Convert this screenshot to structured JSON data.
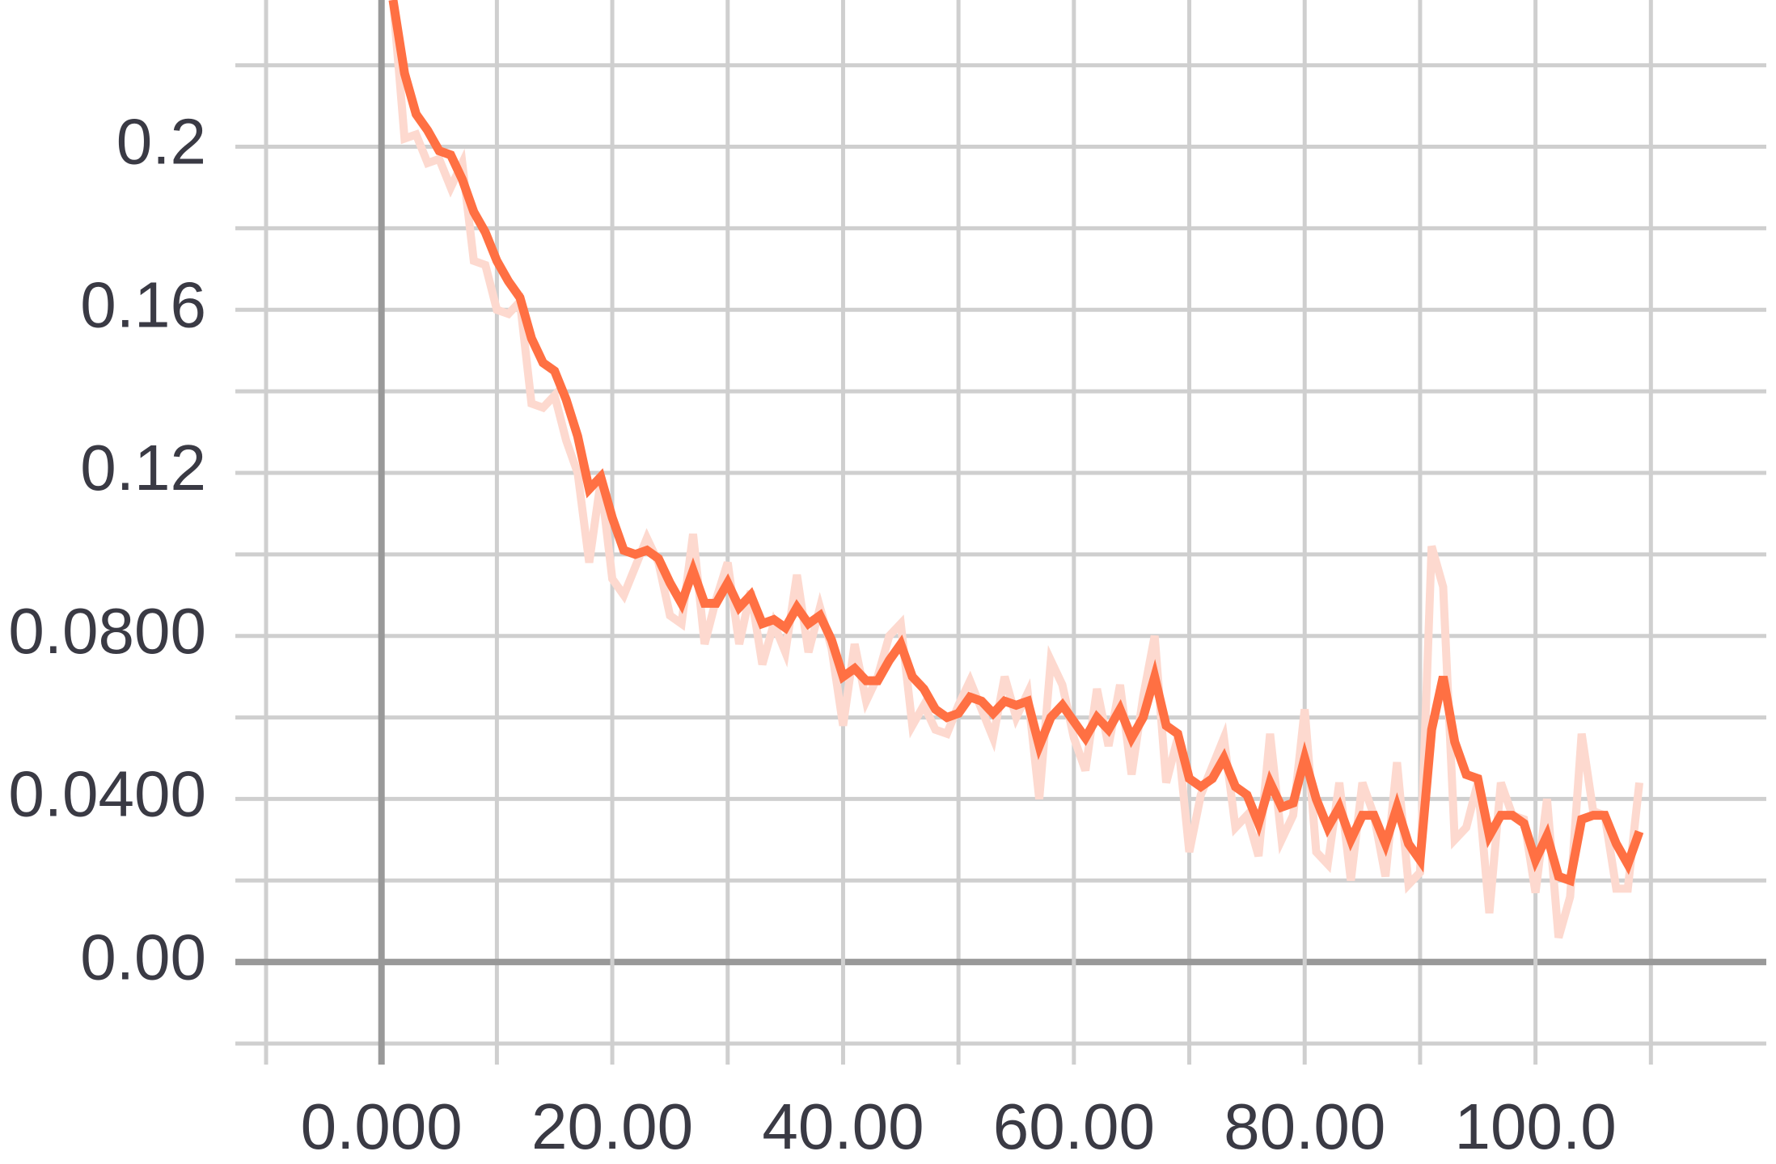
{
  "chart_data": {
    "type": "line",
    "x": [
      1,
      2,
      3,
      4,
      5,
      6,
      7,
      8,
      9,
      10,
      11,
      12,
      13,
      14,
      15,
      16,
      17,
      18,
      19,
      20,
      21,
      22,
      23,
      24,
      25,
      26,
      27,
      28,
      29,
      30,
      31,
      32,
      33,
      34,
      35,
      36,
      37,
      38,
      39,
      40,
      41,
      42,
      43,
      44,
      45,
      46,
      47,
      48,
      49,
      50,
      51,
      52,
      53,
      54,
      55,
      56,
      57,
      58,
      59,
      60,
      61,
      62,
      63,
      64,
      65,
      66,
      67,
      68,
      69,
      70,
      71,
      72,
      73,
      74,
      75,
      76,
      77,
      78,
      79,
      80,
      81,
      82,
      83,
      84,
      85,
      86,
      87,
      88,
      89,
      90,
      91,
      92,
      93,
      94,
      95,
      96,
      97,
      98,
      99,
      100,
      101,
      102,
      103,
      104,
      105,
      106,
      107,
      108,
      109
    ],
    "series": [
      {
        "color": "#fdd9cf",
        "values": [
          0.236,
          0.202,
          0.203,
          0.196,
          0.197,
          0.19,
          0.196,
          0.172,
          0.171,
          0.16,
          0.159,
          0.162,
          0.137,
          0.136,
          0.139,
          0.128,
          0.12,
          0.098,
          0.118,
          0.094,
          0.09,
          0.097,
          0.104,
          0.098,
          0.085,
          0.083,
          0.105,
          0.078,
          0.089,
          0.098,
          0.078,
          0.091,
          0.073,
          0.083,
          0.076,
          0.095,
          0.076,
          0.087,
          0.077,
          0.058,
          0.078,
          0.064,
          0.07,
          0.08,
          0.083,
          0.058,
          0.063,
          0.057,
          0.056,
          0.063,
          0.069,
          0.062,
          0.055,
          0.07,
          0.06,
          0.066,
          0.04,
          0.074,
          0.068,
          0.055,
          0.047,
          0.067,
          0.053,
          0.068,
          0.046,
          0.065,
          0.08,
          0.044,
          0.055,
          0.027,
          0.041,
          0.048,
          0.055,
          0.033,
          0.036,
          0.026,
          0.056,
          0.03,
          0.036,
          0.062,
          0.027,
          0.024,
          0.044,
          0.02,
          0.044,
          0.036,
          0.021,
          0.049,
          0.019,
          0.022,
          0.102,
          0.092,
          0.03,
          0.033,
          0.044,
          0.012,
          0.044,
          0.036,
          0.035,
          0.017,
          0.04,
          0.006,
          0.016,
          0.056,
          0.037,
          0.036,
          0.018,
          0.018,
          0.044
        ]
      },
      {
        "color": "#ff7043",
        "values": [
          0.236,
          0.218,
          0.208,
          0.204,
          0.199,
          0.198,
          0.192,
          0.184,
          0.179,
          0.172,
          0.167,
          0.163,
          0.153,
          0.147,
          0.145,
          0.138,
          0.129,
          0.116,
          0.119,
          0.109,
          0.101,
          0.1,
          0.101,
          0.099,
          0.093,
          0.088,
          0.096,
          0.088,
          0.088,
          0.093,
          0.087,
          0.09,
          0.083,
          0.084,
          0.082,
          0.087,
          0.083,
          0.085,
          0.079,
          0.07,
          0.072,
          0.069,
          0.069,
          0.074,
          0.078,
          0.07,
          0.067,
          0.062,
          0.06,
          0.061,
          0.065,
          0.064,
          0.061,
          0.064,
          0.063,
          0.064,
          0.053,
          0.06,
          0.063,
          0.059,
          0.055,
          0.06,
          0.057,
          0.062,
          0.055,
          0.06,
          0.07,
          0.058,
          0.056,
          0.045,
          0.043,
          0.045,
          0.05,
          0.043,
          0.041,
          0.034,
          0.044,
          0.038,
          0.039,
          0.05,
          0.04,
          0.033,
          0.038,
          0.03,
          0.036,
          0.036,
          0.029,
          0.038,
          0.029,
          0.025,
          0.057,
          0.07,
          0.054,
          0.046,
          0.045,
          0.031,
          0.036,
          0.036,
          0.034,
          0.025,
          0.031,
          0.021,
          0.02,
          0.035,
          0.036,
          0.036,
          0.029,
          0.024,
          0.032
        ]
      }
    ],
    "xlim": [
      -10,
      120
    ],
    "ylim": [
      -0.02,
      0.236
    ],
    "xticks": [
      {
        "value": 0,
        "label": "0.000"
      },
      {
        "value": 20,
        "label": "20.00"
      },
      {
        "value": 40,
        "label": "40.00"
      },
      {
        "value": 60,
        "label": "60.00"
      },
      {
        "value": 80,
        "label": "80.00"
      },
      {
        "value": 100,
        "label": "100.0"
      }
    ],
    "yticks": [
      {
        "value": 0,
        "label": "0.00"
      },
      {
        "value": 0.04,
        "label": "0.0400"
      },
      {
        "value": 0.08,
        "label": "0.0800"
      },
      0.12,
      0.16,
      0.2
    ],
    "minor_xticks": [
      -10,
      10,
      30,
      50,
      70,
      90,
      110
    ],
    "minor_yticks": [
      -0.02,
      0.02,
      0.06,
      0.1,
      0.14,
      0.18,
      0.22
    ],
    "grid": true
  }
}
